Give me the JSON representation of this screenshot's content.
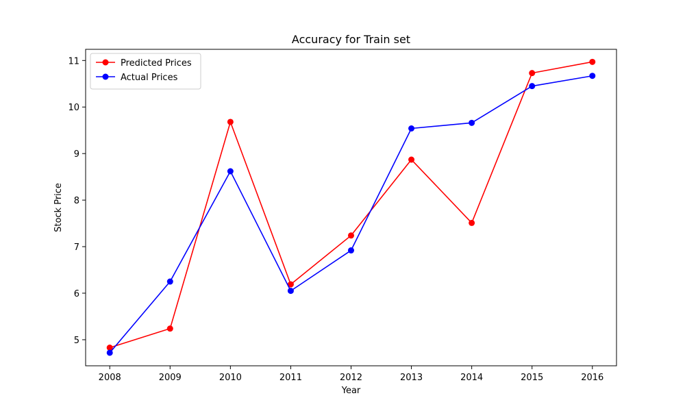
{
  "chart_data": {
    "type": "line",
    "title": "Accuracy for Train set",
    "xlabel": "Year",
    "ylabel": "Stock Price",
    "x": [
      2008,
      2009,
      2010,
      2011,
      2012,
      2013,
      2014,
      2015,
      2016
    ],
    "x_ticks": [
      "2008",
      "2009",
      "2010",
      "2011",
      "2012",
      "2013",
      "2014",
      "2015",
      "2016"
    ],
    "xlim": [
      2007.6,
      2016.4
    ],
    "ylim": [
      4.44,
      11.24
    ],
    "y_ticks": [
      5,
      6,
      7,
      8,
      9,
      10,
      11
    ],
    "grid": false,
    "legend_position": "top-left",
    "series": [
      {
        "name": "Predicted Prices",
        "color": "#ff0000",
        "marker": "circle",
        "values": [
          4.83,
          5.24,
          9.68,
          6.19,
          7.24,
          8.87,
          7.51,
          10.73,
          10.97
        ]
      },
      {
        "name": "Actual Prices",
        "color": "#0000ff",
        "marker": "circle",
        "values": [
          4.72,
          6.25,
          8.62,
          6.05,
          6.92,
          9.54,
          9.66,
          10.45,
          10.67
        ]
      }
    ]
  }
}
